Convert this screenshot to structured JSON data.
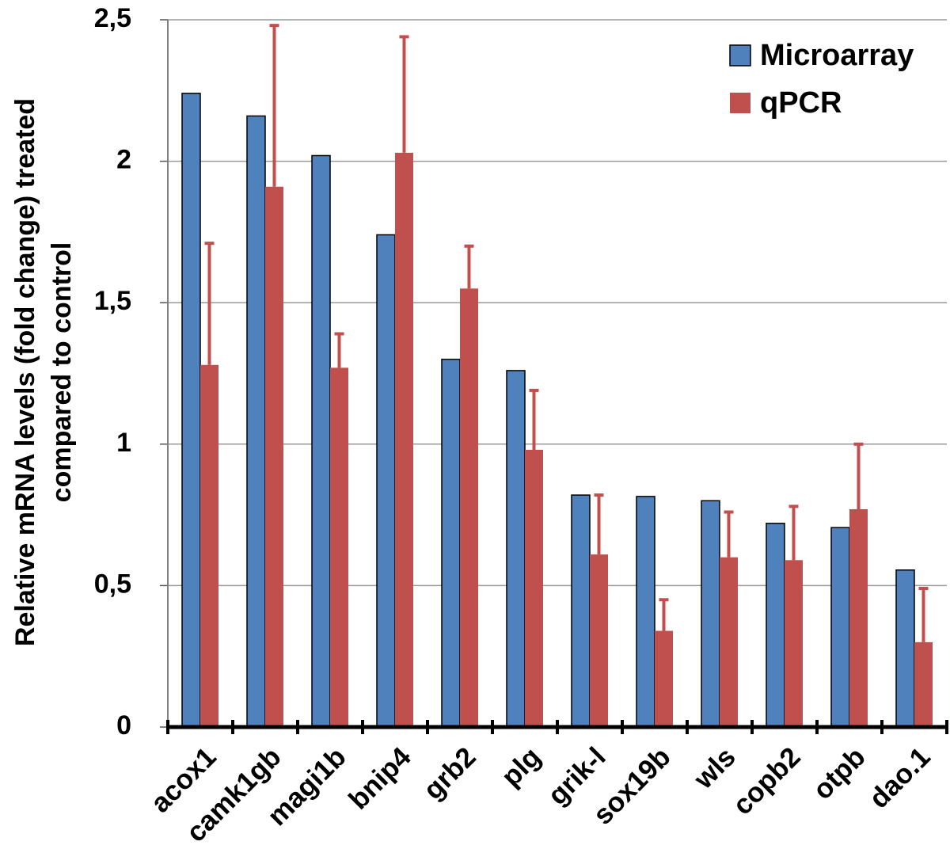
{
  "chart_data": {
    "type": "bar",
    "title": "",
    "xlabel": "",
    "ylabel": {
      "line1": "Relative mRNA levels (fold change) treated",
      "line2": "compared to control"
    },
    "ylim": [
      0,
      2.5
    ],
    "yticks": [
      {
        "value": 0,
        "label": "0"
      },
      {
        "value": 0.5,
        "label": "0,5"
      },
      {
        "value": 1,
        "label": "1"
      },
      {
        "value": 1.5,
        "label": "1,5"
      },
      {
        "value": 2,
        "label": "2"
      },
      {
        "value": 2.5,
        "label": "2,5"
      }
    ],
    "grid": true,
    "legend_position": "top-right",
    "categories": [
      "acox1",
      "camk1gb",
      "magi1b",
      "bnip4",
      "grb2",
      "plg",
      "grik-l",
      "sox19b",
      "wls",
      "copb2",
      "otpb",
      "dao.1"
    ],
    "series": [
      {
        "name": "Microarray",
        "color": "#4f81bd",
        "values": [
          2.24,
          2.16,
          2.02,
          1.74,
          1.3,
          1.26,
          0.82,
          0.815,
          0.8,
          0.72,
          0.705,
          0.555
        ],
        "error": null
      },
      {
        "name": "qPCR",
        "color": "#c0504d",
        "values": [
          1.28,
          1.91,
          1.27,
          2.03,
          1.55,
          0.98,
          0.61,
          0.34,
          0.6,
          0.59,
          0.77,
          0.3
        ],
        "error": [
          0.43,
          0.57,
          0.12,
          0.41,
          0.15,
          0.21,
          0.21,
          0.11,
          0.16,
          0.19,
          0.23,
          0.19
        ]
      }
    ]
  }
}
